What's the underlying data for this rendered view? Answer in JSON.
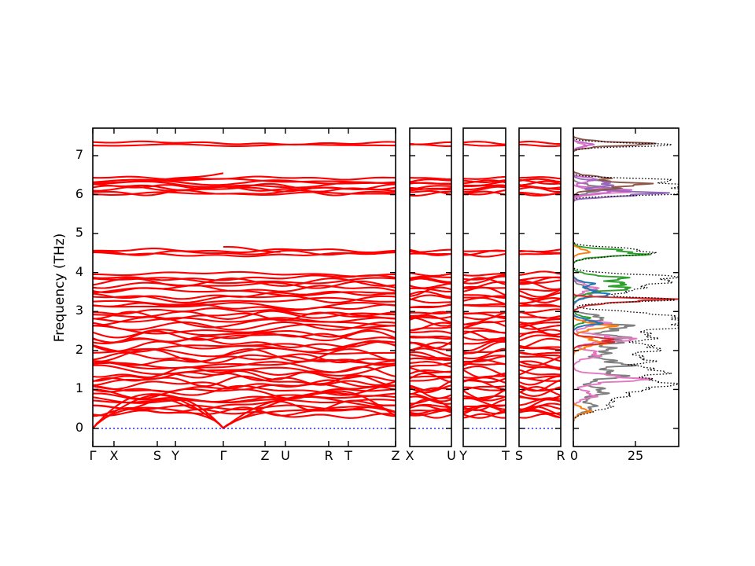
{
  "figure": {
    "ylabel": "Frequency (THz)",
    "yticks": [
      "0",
      "1",
      "2",
      "3",
      "4",
      "5",
      "6",
      "7"
    ],
    "kpoints_main": [
      "Γ",
      "X",
      "S",
      "Y",
      "Γ",
      "Z",
      "U",
      "R",
      "T",
      "Z"
    ],
    "kpoints_panel2": [
      "X",
      "U"
    ],
    "kpoints_panel3": [
      "Y",
      "T"
    ],
    "kpoints_panel4": [
      "S",
      "R"
    ],
    "dos_ticks": [
      "0",
      "25"
    ]
  },
  "chart_data": [
    {
      "type": "line",
      "name": "phonon-band-structure",
      "ylabel": "Frequency (THz)",
      "ylim": [
        -0.46,
        7.72
      ],
      "yticks": [
        0,
        1,
        2,
        3,
        4,
        5,
        6,
        7
      ],
      "band_color": "#ff0000",
      "zero_line_color": "#0000ff",
      "panels": [
        {
          "kpoints": [
            "Γ",
            "X",
            "S",
            "Y",
            "Γ",
            "Z",
            "U",
            "R",
            "T",
            "Z"
          ],
          "kpoint_fractions": [
            0,
            0.07,
            0.213,
            0.273,
            0.431,
            0.569,
            0.636,
            0.779,
            0.844,
            1.0
          ]
        },
        {
          "kpoints": [
            "X",
            "U"
          ],
          "kpoint_fractions": [
            0,
            1
          ]
        },
        {
          "kpoints": [
            "Y",
            "T"
          ],
          "kpoint_fractions": [
            0,
            1
          ]
        },
        {
          "kpoints": [
            "S",
            "R"
          ],
          "kpoint_fractions": [
            0,
            1
          ]
        }
      ],
      "acoustic_bands": [
        {
          "peak": 0.55
        },
        {
          "peak": 0.78
        },
        {
          "peak": 0.97
        }
      ],
      "optical_bands": [
        [
          0.38,
          0.1
        ],
        [
          0.45,
          0.12
        ],
        [
          0.52,
          0.1
        ],
        [
          0.6,
          0.14
        ],
        [
          0.68,
          0.12
        ],
        [
          0.75,
          0.15
        ],
        [
          0.83,
          0.12
        ],
        [
          0.9,
          0.16
        ],
        [
          0.98,
          0.13
        ],
        [
          1.05,
          0.12
        ],
        [
          1.12,
          0.15
        ],
        [
          1.2,
          0.12
        ],
        [
          1.28,
          0.14
        ],
        [
          1.35,
          0.12
        ],
        [
          1.43,
          0.16
        ],
        [
          1.5,
          0.13
        ],
        [
          1.58,
          0.15
        ],
        [
          1.66,
          0.12
        ],
        [
          1.74,
          0.14
        ],
        [
          1.82,
          0.12
        ],
        [
          1.9,
          0.15
        ],
        [
          1.98,
          0.12
        ],
        [
          2.06,
          0.14
        ],
        [
          2.14,
          0.12
        ],
        [
          2.22,
          0.15
        ],
        [
          2.3,
          0.12
        ],
        [
          2.38,
          0.14
        ],
        [
          2.46,
          0.12
        ],
        [
          2.54,
          0.13
        ],
        [
          2.62,
          0.12
        ],
        [
          2.7,
          0.14
        ],
        [
          2.78,
          0.11
        ],
        [
          2.86,
          0.12
        ],
        [
          2.93,
          0.1
        ],
        [
          3.0,
          0.08
        ],
        [
          3.1,
          0.09
        ],
        [
          3.17,
          0.1
        ],
        [
          3.25,
          0.09
        ],
        [
          3.33,
          0.11
        ],
        [
          3.41,
          0.09
        ],
        [
          3.5,
          0.12
        ],
        [
          3.58,
          0.1
        ],
        [
          3.66,
          0.11
        ],
        [
          3.74,
          0.1
        ],
        [
          3.82,
          0.09
        ],
        [
          3.89,
          0.07
        ],
        [
          3.95,
          0.06
        ],
        [
          4.48,
          0.05
        ],
        [
          4.53,
          0.07
        ],
        [
          4.59,
          0.05
        ],
        [
          6.02,
          0.05
        ],
        [
          6.07,
          0.07
        ],
        [
          6.12,
          0.07
        ],
        [
          6.17,
          0.09
        ],
        [
          6.22,
          0.07
        ],
        [
          6.27,
          0.09
        ],
        [
          6.32,
          0.07
        ],
        [
          6.36,
          0.05
        ],
        [
          6.41,
          0.04
        ],
        [
          7.27,
          0.03
        ],
        [
          7.3,
          0.04
        ]
      ],
      "lo_to_stubs": [
        {
          "t_start": 0.19,
          "t_end": 0.431,
          "f_start": 6.33,
          "f_end": 6.55
        },
        {
          "t_start": 0.431,
          "t_end": 0.62,
          "f_start": 4.66,
          "f_end": 4.53
        }
      ]
    },
    {
      "type": "line",
      "name": "phonon-dos",
      "orientation": "horizontal",
      "xticks": [
        0,
        25
      ],
      "xlim": [
        0,
        42
      ],
      "total": {
        "name": "total-dos",
        "color": "#000000",
        "style": "dotted",
        "peaks": [
          [
            0.55,
            13,
            0.12
          ],
          [
            0.9,
            22,
            0.15
          ],
          [
            1.15,
            33,
            0.1
          ],
          [
            1.45,
            36,
            0.12
          ],
          [
            1.75,
            28,
            0.1
          ],
          [
            2.05,
            34,
            0.12
          ],
          [
            2.35,
            30,
            0.1
          ],
          [
            2.62,
            40,
            0.1
          ],
          [
            2.8,
            34,
            0.08
          ],
          [
            2.95,
            26,
            0.07
          ],
          [
            3.3,
            38,
            0.06
          ],
          [
            3.55,
            24,
            0.1
          ],
          [
            3.75,
            30,
            0.08
          ],
          [
            3.9,
            34,
            0.07
          ],
          [
            4.5,
            30,
            0.08
          ],
          [
            4.62,
            12,
            0.05
          ],
          [
            6.03,
            40,
            0.05
          ],
          [
            6.12,
            34,
            0.06
          ],
          [
            6.25,
            38,
            0.07
          ],
          [
            6.38,
            30,
            0.05
          ],
          [
            7.28,
            38,
            0.05
          ]
        ]
      },
      "series": [
        {
          "name": "gray",
          "color": "#7f7f7f",
          "peaks": [
            [
              0.55,
              8,
              0.12
            ],
            [
              0.95,
              12,
              0.12
            ],
            [
              1.35,
              18,
              0.1
            ],
            [
              1.65,
              20,
              0.1
            ],
            [
              2.0,
              14,
              0.12
            ],
            [
              2.3,
              20,
              0.1
            ],
            [
              2.6,
              22,
              0.08
            ],
            [
              2.85,
              12,
              0.07
            ],
            [
              3.5,
              9,
              0.12
            ],
            [
              6.15,
              15,
              0.08
            ]
          ]
        },
        {
          "name": "pink",
          "color": "#e377c2",
          "peaks": [
            [
              0.85,
              8,
              0.1
            ],
            [
              1.27,
              26,
              0.09
            ],
            [
              1.9,
              10,
              0.1
            ],
            [
              2.3,
              22,
              0.08
            ],
            [
              2.7,
              12,
              0.08
            ],
            [
              3.6,
              8,
              0.1
            ],
            [
              6.07,
              18,
              0.06
            ],
            [
              7.27,
              5,
              0.05
            ]
          ]
        },
        {
          "name": "magenta",
          "color": "#cc66cc",
          "peaks": [
            [
              6.1,
              20,
              0.06
            ],
            [
              6.38,
              10,
              0.05
            ],
            [
              7.28,
              7,
              0.05
            ]
          ]
        },
        {
          "name": "purple",
          "color": "#9467bd",
          "peaks": [
            [
              6.02,
              34,
              0.06
            ],
            [
              6.28,
              16,
              0.07
            ]
          ]
        },
        {
          "name": "brown",
          "color": "#8c564b",
          "peaks": [
            [
              6.25,
              26,
              0.09
            ],
            [
              6.45,
              9,
              0.05
            ],
            [
              7.3,
              27,
              0.06
            ]
          ]
        },
        {
          "name": "green",
          "color": "#2ca02c",
          "peaks": [
            [
              2.8,
              6,
              0.08
            ],
            [
              3.62,
              21,
              0.1
            ],
            [
              3.85,
              17,
              0.08
            ],
            [
              4.5,
              27,
              0.08
            ]
          ]
        },
        {
          "name": "orange",
          "color": "#ff7f0e",
          "peaks": [
            [
              0.45,
              6,
              0.08
            ],
            [
              2.2,
              11,
              0.1
            ],
            [
              2.62,
              14,
              0.08
            ],
            [
              4.55,
              6,
              0.06
            ]
          ]
        },
        {
          "name": "blue",
          "color": "#1f77b4",
          "peaks": [
            [
              2.72,
              10,
              0.07
            ],
            [
              3.45,
              13,
              0.08
            ],
            [
              3.7,
              7,
              0.07
            ]
          ]
        },
        {
          "name": "red",
          "color": "#d62728",
          "peaks": [
            [
              2.25,
              17,
              0.07
            ],
            [
              3.18,
              7,
              0.06
            ],
            [
              3.3,
              39,
              0.045
            ]
          ]
        }
      ]
    }
  ]
}
